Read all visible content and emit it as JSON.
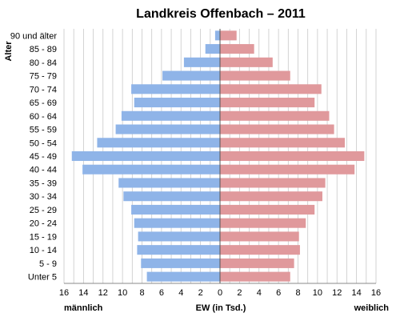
{
  "chart_data": {
    "type": "bar",
    "orientation": "horizontal-population-pyramid",
    "title": "Landkreis Offenbach – 2011",
    "ylabel": "Alter",
    "xlabel": "EW (in Tsd.)",
    "left_label": "männlich",
    "right_label": "weiblich",
    "categories": [
      "90 und älter",
      "85 - 89",
      "80 - 84",
      "75 - 79",
      "70 - 74",
      "65 - 69",
      "60 - 64",
      "55 - 59",
      "50 - 54",
      "45 - 49",
      "40 - 44",
      "35 - 39",
      "30 - 34",
      "25 - 29",
      "20 - 24",
      "15 - 19",
      "10 - 14",
      "5 - 9",
      "Unter 5"
    ],
    "series": [
      {
        "name": "männlich",
        "color": "#8fb4e8",
        "values": [
          0.5,
          1.5,
          3.7,
          5.9,
          9.1,
          8.8,
          10.1,
          10.7,
          12.6,
          15.2,
          14.1,
          10.4,
          9.9,
          9.1,
          8.8,
          8.4,
          8.5,
          8.1,
          7.5
        ]
      },
      {
        "name": "weiblich",
        "color": "#e0999c",
        "values": [
          1.7,
          3.5,
          5.4,
          7.2,
          10.4,
          9.7,
          11.2,
          11.7,
          12.8,
          14.8,
          13.8,
          10.8,
          10.5,
          9.7,
          8.8,
          8.1,
          8.2,
          7.6,
          7.2
        ]
      }
    ],
    "xticks": [
      "16",
      "14",
      "12",
      "10",
      "8",
      "6",
      "4",
      "2",
      "0",
      "2",
      "4",
      "6",
      "8",
      "10",
      "12",
      "14",
      "16"
    ],
    "xlim": [
      -16,
      16
    ],
    "grid": true
  }
}
